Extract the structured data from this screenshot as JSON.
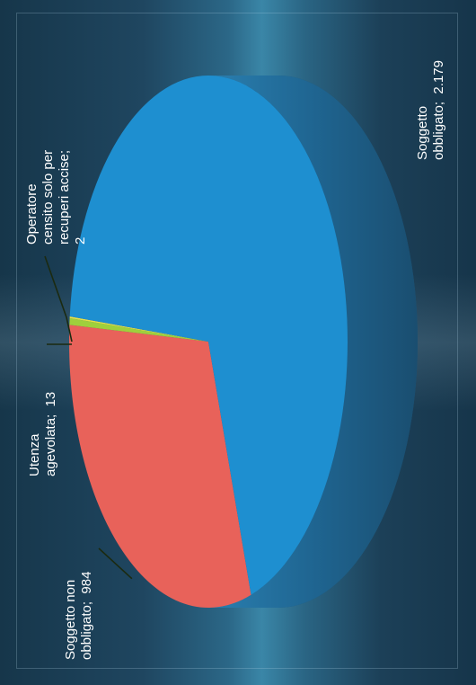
{
  "chart_data": {
    "type": "pie",
    "three_d": true,
    "orientation": "rotated 90 degrees counter-clockwise",
    "title": "",
    "slices": [
      {
        "label": "Soggetto obbligato",
        "value": 2179,
        "display": "Soggetto\nobbligato;  2.179",
        "color": "#1e8fd0"
      },
      {
        "label": "Soggetto non obbligato",
        "value": 984,
        "display": "Soggetto non\nobbligato;  984",
        "color": "#e8625a"
      },
      {
        "label": "Utenza agevolata",
        "value": 13,
        "display": "Utenza\nagevolata;  13",
        "color": "#9fd03c"
      },
      {
        "label": "Operatore censito solo per recuperi accise",
        "value": 2,
        "display": "Operatore\ncensito solo per\nrecuperi accise;\n2",
        "color": "#e6e04a"
      }
    ],
    "colors": {
      "background": "#1d3b4f",
      "side_dark": "#1f5f86",
      "label_text": "#ffffff",
      "leader_line": "#1b2a10"
    }
  }
}
